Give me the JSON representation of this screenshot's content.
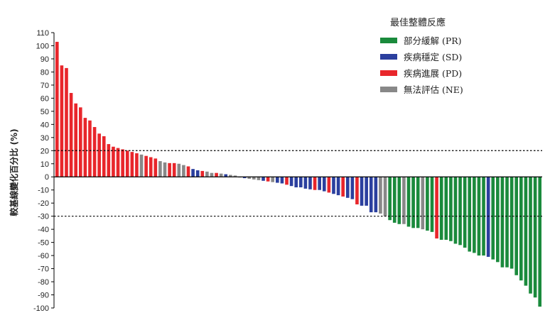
{
  "chart_data": {
    "type": "bar",
    "title": "",
    "xlabel": "",
    "ylabel": "較基線變化百分比 (%)",
    "ylim": [
      -100,
      110
    ],
    "yticks": [
      110,
      100,
      90,
      80,
      70,
      60,
      50,
      40,
      30,
      20,
      10,
      0,
      -10,
      -20,
      -30,
      -40,
      -50,
      -60,
      -70,
      -80,
      -90,
      -100
    ],
    "reference_lines": [
      20,
      -30
    ],
    "grid": false,
    "legend_placement": "top-right",
    "legend": {
      "title": "最佳整體反應",
      "entries": [
        {
          "key": "PR",
          "label": "部分緩解 (PR)",
          "color": "#1a8a3c"
        },
        {
          "key": "SD",
          "label": "疾病穩定 (SD)",
          "color": "#2b3f9e"
        },
        {
          "key": "PD",
          "label": "疾病進展 (PD)",
          "color": "#e8262b"
        },
        {
          "key": "NE",
          "label": "無法評估 (NE)",
          "color": "#888888"
        }
      ]
    },
    "values": [
      103,
      85,
      83,
      64,
      56,
      53,
      45,
      43,
      38,
      33,
      31,
      25,
      23,
      22,
      21,
      20,
      19,
      18,
      17,
      16,
      15,
      14,
      12,
      11,
      10.5,
      10.5,
      10,
      9,
      8,
      6,
      5,
      4.5,
      4,
      3,
      3,
      2.5,
      2,
      1.5,
      1,
      -0.5,
      -1,
      -1.5,
      -2,
      -2.5,
      -3,
      -3.5,
      -4,
      -4.5,
      -5,
      -6,
      -7,
      -8,
      -8,
      -9,
      -9.5,
      -10,
      -10,
      -11,
      -12,
      -13,
      -14,
      -15,
      -16,
      -17,
      -21,
      -22,
      -22,
      -27,
      -27,
      -28,
      -30,
      -33,
      -35,
      -36,
      -36,
      -38,
      -39,
      -39,
      -40,
      -41,
      -42,
      -47,
      -48,
      -48,
      -49,
      -51,
      -52,
      -54,
      -57,
      -58,
      -60,
      -60,
      -61,
      -63,
      -65,
      -69,
      -69,
      -70,
      -75,
      -79,
      -83,
      -89,
      -92,
      -99
    ],
    "responses": [
      "PD",
      "PD",
      "PD",
      "PD",
      "PD",
      "PD",
      "PD",
      "PD",
      "PD",
      "PD",
      "PD",
      "PD",
      "PD",
      "PD",
      "PD",
      "PD",
      "PD",
      "PD",
      "NE",
      "PD",
      "PD",
      "PD",
      "NE",
      "NE",
      "PD",
      "PD",
      "NE",
      "NE",
      "PD",
      "SD",
      "SD",
      "PD",
      "NE",
      "NE",
      "PD",
      "NE",
      "SD",
      "NE",
      "NE",
      "NE",
      "SD",
      "NE",
      "NE",
      "NE",
      "SD",
      "PD",
      "NE",
      "SD",
      "SD",
      "PD",
      "SD",
      "SD",
      "SD",
      "SD",
      "SD",
      "PD",
      "SD",
      "SD",
      "PD",
      "SD",
      "SD",
      "PD",
      "SD",
      "SD",
      "PD",
      "SD",
      "SD",
      "SD",
      "SD",
      "NE",
      "NE",
      "PR",
      "PR",
      "PR",
      "NE",
      "PR",
      "PR",
      "PR",
      "NE",
      "PR",
      "PR",
      "PD",
      "PR",
      "PR",
      "PR",
      "PR",
      "PR",
      "PR",
      "PR",
      "PR",
      "PR",
      "PR",
      "SD",
      "PR",
      "PR",
      "PR",
      "PR",
      "PR",
      "PR",
      "PR",
      "PR",
      "PR",
      "PR",
      "PR",
      "PR"
    ]
  }
}
